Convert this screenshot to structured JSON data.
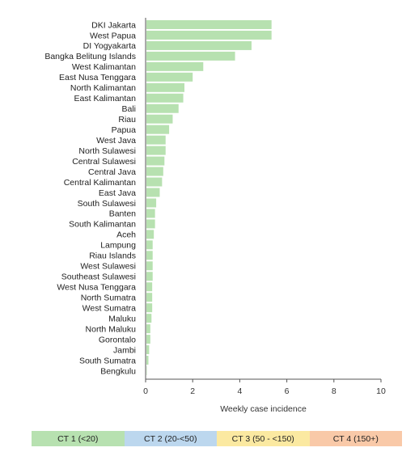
{
  "chart_data": {
    "type": "bar",
    "orientation": "horizontal",
    "title": "",
    "xlabel": "Weekly case incidence",
    "ylabel": "",
    "xlim": [
      0,
      10
    ],
    "xticks": [
      0,
      2,
      4,
      6,
      8,
      10
    ],
    "grid": false,
    "bar_color": "#b7e1b0",
    "categories": [
      "DKI Jakarta",
      "West Papua",
      "DI Yogyakarta",
      "Bangka Belitung Islands",
      "West Kalimantan",
      "East Nusa Tenggara",
      "North Kalimantan",
      "East Kalimantan",
      "Bali",
      "Riau",
      "Papua",
      "West Java",
      "North Sulawesi",
      "Central Sulawesi",
      "Central Java",
      "Central Kalimantan",
      "East Java",
      "South Sulawesi",
      "Banten",
      "South Kalimantan",
      "Aceh",
      "Lampung",
      "Riau Islands",
      "West Sulawesi",
      "Southeast Sulawesi",
      "West Nusa Tenggara",
      "North Sumatra",
      "West Sumatra",
      "Maluku",
      "North Maluku",
      "Gorontalo",
      "Jambi",
      "South Sumatra",
      "Bengkulu"
    ],
    "values": [
      5.35,
      5.35,
      4.5,
      3.8,
      2.45,
      2.0,
      1.65,
      1.6,
      1.4,
      1.15,
      1.0,
      0.85,
      0.85,
      0.8,
      0.75,
      0.7,
      0.6,
      0.45,
      0.4,
      0.4,
      0.35,
      0.3,
      0.3,
      0.3,
      0.3,
      0.28,
      0.28,
      0.28,
      0.25,
      0.2,
      0.2,
      0.15,
      0.12,
      0.05
    ]
  },
  "legend": {
    "placement": "bottom",
    "items": [
      {
        "label": "CT 1 (<20)",
        "color": "#b7e1b0"
      },
      {
        "label": "CT 2 (20-<50)",
        "color": "#bcd7ee"
      },
      {
        "label": "CT 3 (50 - <150)",
        "color": "#fbe9a1"
      },
      {
        "label": "CT 4 (150+)",
        "color": "#f9c9a8"
      }
    ]
  }
}
